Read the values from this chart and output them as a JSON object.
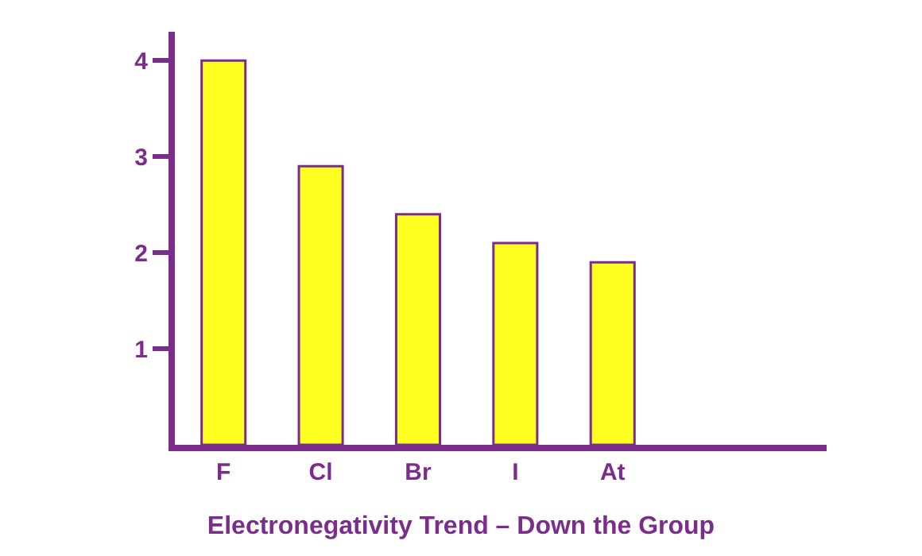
{
  "chart_data": {
    "type": "bar",
    "title": "Electronegativity Trend – Down the Group",
    "categories": [
      "F",
      "Cl",
      "Br",
      "I",
      "At"
    ],
    "series": [
      {
        "color": "#ffff22",
        "values": [
          4.0,
          2.9,
          2.4,
          2.1,
          1.9
        ]
      }
    ],
    "ylim": [
      0,
      4.3
    ],
    "yticks": [
      1,
      2,
      3,
      4
    ]
  }
}
